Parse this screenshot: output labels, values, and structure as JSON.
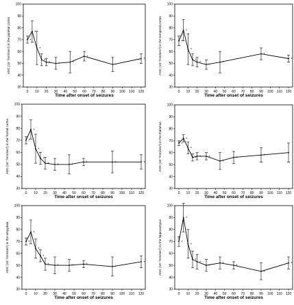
{
  "chart_data": [
    {
      "type": "line",
      "xlabel": "Time after onset of seizures",
      "ylabel": "ADC (10⁻³mm/sec²) in the parietal cortex",
      "x": [
        0,
        5,
        10,
        15,
        20,
        30,
        45,
        60,
        90,
        120
      ],
      "values": [
        70,
        77,
        63,
        53,
        51,
        50,
        51,
        56,
        49,
        54
      ],
      "err": [
        3,
        9,
        14,
        5,
        3,
        5,
        9,
        4,
        6,
        4
      ],
      "stars": [
        true,
        true,
        true,
        true,
        true,
        true,
        true,
        true,
        true,
        true
      ],
      "ylim": [
        30,
        100
      ],
      "yticks": [
        30,
        40,
        50,
        60,
        70,
        80,
        90,
        100
      ],
      "xticks": [
        0,
        10,
        20,
        30,
        40,
        50,
        60,
        70,
        80,
        90,
        100,
        110,
        120
      ]
    },
    {
      "type": "line",
      "xlabel": "Time after onset of seizures",
      "ylabel": "ADC (10⁻³mm/sec²) in the temporal cortex",
      "x": [
        0,
        5,
        10,
        15,
        20,
        30,
        45,
        90,
        120
      ],
      "values": [
        69,
        78,
        62,
        53,
        51,
        49,
        51,
        58,
        54
      ],
      "err": [
        4,
        9,
        13,
        5,
        4,
        4,
        9,
        5,
        3
      ],
      "stars": [
        true,
        true,
        true,
        true,
        true,
        true,
        true,
        true,
        true
      ],
      "ylim": [
        30,
        100
      ],
      "yticks": [
        30,
        40,
        50,
        60,
        70,
        80,
        90,
        100
      ],
      "xticks": [
        0,
        10,
        20,
        30,
        40,
        50,
        60,
        70,
        80,
        90,
        100,
        110,
        120
      ]
    },
    {
      "type": "line",
      "xlabel": "Time after onset of seizures",
      "ylabel": "ADC (10⁻³mm/sec²) in the frontal cortex",
      "x": [
        0,
        5,
        10,
        15,
        20,
        30,
        45,
        60,
        90,
        120
      ],
      "values": [
        70,
        79,
        63,
        55,
        51,
        50,
        50,
        52,
        52,
        52
      ],
      "err": [
        3,
        8,
        12,
        5,
        5,
        5,
        8,
        3,
        9,
        6
      ],
      "stars": [
        true,
        true,
        true,
        true,
        true,
        true,
        true,
        true,
        true,
        true
      ],
      "ylim": [
        30,
        100
      ],
      "yticks": [
        30,
        40,
        50,
        60,
        70,
        80,
        90,
        100
      ],
      "xticks": [
        0,
        10,
        20,
        30,
        40,
        50,
        60,
        70,
        80,
        90,
        100,
        110,
        120
      ]
    },
    {
      "type": "line",
      "xlabel": "Time after onset of seizures",
      "ylabel": "ADC (10⁻³mm/sec²) in the thalamus",
      "x": [
        0,
        5,
        10,
        15,
        20,
        30,
        45,
        60,
        90,
        120
      ],
      "values": [
        68,
        72,
        64,
        56,
        57,
        57,
        53,
        56,
        58,
        60
      ],
      "err": [
        2,
        3,
        5,
        3,
        3,
        3,
        7,
        5,
        6,
        8
      ],
      "stars": [
        true,
        true,
        true,
        true,
        true,
        true,
        true,
        true,
        true,
        false
      ],
      "ylim": [
        30,
        100
      ],
      "yticks": [
        30,
        40,
        50,
        60,
        70,
        80,
        90,
        100
      ],
      "xticks": [
        0,
        10,
        20,
        30,
        40,
        50,
        60,
        70,
        80,
        90,
        100,
        110,
        120
      ]
    },
    {
      "type": "line",
      "xlabel": "Time after onset of seizures",
      "ylabel": "ADC (10⁻³mm/sec²) in the amygdala",
      "x": [
        0,
        5,
        10,
        15,
        20,
        30,
        45,
        60,
        90,
        120
      ],
      "values": [
        70,
        78,
        64,
        58,
        51,
        50,
        50,
        51,
        49,
        53
      ],
      "err": [
        3,
        10,
        8,
        5,
        5,
        7,
        5,
        3,
        8,
        5
      ],
      "stars": [
        true,
        true,
        true,
        true,
        true,
        true,
        true,
        true,
        true,
        true
      ],
      "ylim": [
        30,
        100
      ],
      "yticks": [
        30,
        40,
        50,
        60,
        70,
        80,
        90,
        100
      ],
      "xticks": [
        0,
        10,
        20,
        30,
        40,
        50,
        60,
        70,
        80,
        90,
        100,
        110,
        120
      ]
    },
    {
      "type": "line",
      "xlabel": "Time after onset of seizures",
      "ylabel": "ADC (10⁻³mm/sec²) in the hippocampus",
      "x": [
        0,
        5,
        10,
        15,
        20,
        30,
        45,
        60,
        90,
        120
      ],
      "values": [
        70,
        90,
        68,
        55,
        53,
        50,
        52,
        50,
        45,
        52
      ],
      "err": [
        4,
        12,
        12,
        7,
        6,
        5,
        5,
        3,
        7,
        5
      ],
      "stars": [
        true,
        true,
        true,
        true,
        true,
        true,
        true,
        true,
        true,
        true
      ],
      "ylim": [
        30,
        100
      ],
      "yticks": [
        30,
        40,
        50,
        60,
        70,
        80,
        90,
        100
      ],
      "xticks": [
        0,
        10,
        20,
        30,
        40,
        50,
        60,
        70,
        80,
        90,
        100,
        110,
        120
      ]
    }
  ]
}
